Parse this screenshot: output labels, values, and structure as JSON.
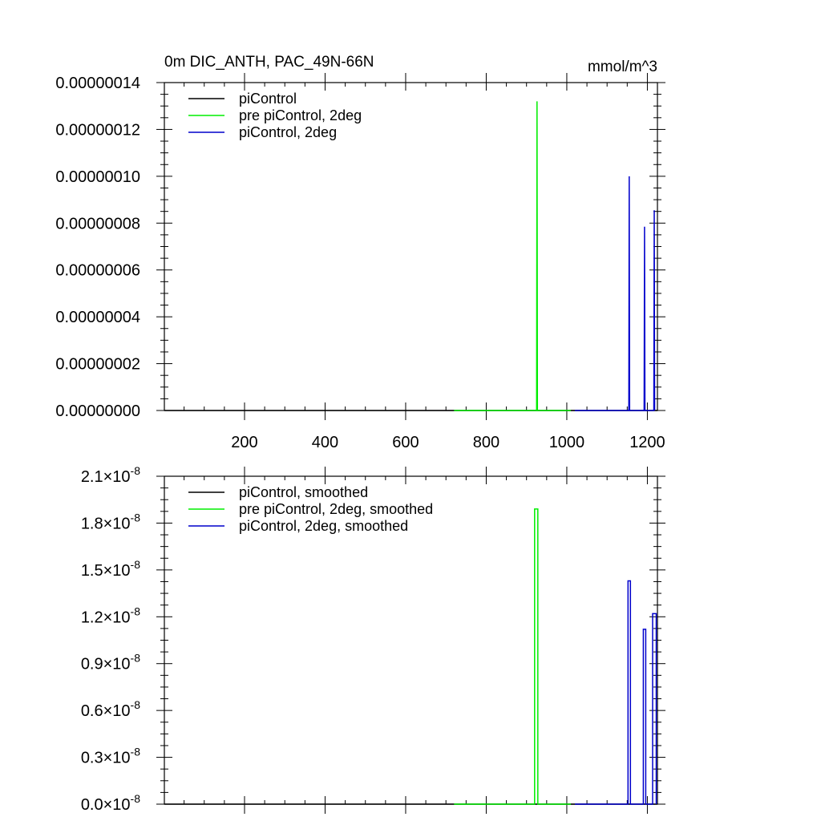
{
  "chart_data": [
    {
      "type": "line",
      "title": "0m DIC_ANTH, PAC_49N-66N",
      "units": "mmol/m^3",
      "xlim": [
        1,
        1225
      ],
      "ylim": [
        0,
        1.4e-07
      ],
      "x_ticks": [
        200,
        400,
        600,
        800,
        1000,
        1200
      ],
      "x_tick_labels": [
        "200",
        "400",
        "600",
        "800",
        "1000",
        "1200"
      ],
      "y_ticks": [
        0,
        2e-08,
        4e-08,
        6e-08,
        8e-08,
        1e-07,
        1.2e-07,
        1.4e-07
      ],
      "y_tick_labels": [
        "0.00000000",
        "0.00000002",
        "0.00000004",
        "0.00000006",
        "0.00000008",
        "0.00000010",
        "0.00000012",
        "0.00000014"
      ],
      "legend_position": "top-left",
      "series": [
        {
          "name": "piControl",
          "color": "#000000",
          "points": [
            [
              1,
              0
            ],
            [
              1225,
              0
            ]
          ]
        },
        {
          "name": "pre piControl, 2deg",
          "color": "#00ee00",
          "points": [
            [
              720,
              0
            ],
            [
              925,
              0
            ],
            [
              926,
              1.32e-07
            ],
            [
              927,
              0
            ],
            [
              1010,
              0
            ]
          ]
        },
        {
          "name": "piControl, 2deg",
          "color": "#0000cc",
          "points": [
            [
              1020,
              0
            ],
            [
              1154,
              0
            ],
            [
              1155,
              1e-07
            ],
            [
              1156,
              0
            ],
            [
              1192,
              0
            ],
            [
              1193,
              7.85e-08
            ],
            [
              1194,
              0
            ],
            [
              1216,
              0
            ],
            [
              1217,
              8.55e-08
            ],
            [
              1218,
              0
            ]
          ]
        }
      ]
    },
    {
      "type": "line",
      "title": "",
      "xlim": [
        1,
        1225
      ],
      "ylim": [
        0,
        2.1e-08
      ],
      "x_ticks": [
        200,
        400,
        600,
        800,
        1000,
        1200
      ],
      "y_ticks": [
        0,
        3e-09,
        6e-09,
        9e-09,
        1.2e-08,
        1.5e-08,
        1.8e-08,
        2.1e-08
      ],
      "y_tick_mantissas": [
        "0.0",
        "0.3",
        "0.6",
        "0.9",
        "1.2",
        "1.5",
        "1.8",
        "2.1"
      ],
      "y_tick_base": "×10",
      "y_tick_exponent": "-8",
      "legend_position": "top-left",
      "series": [
        {
          "name": "piControl, smoothed",
          "color": "#000000",
          "points": [
            [
              1,
              0
            ],
            [
              1225,
              0
            ]
          ]
        },
        {
          "name": "pre piControl, 2deg, smoothed",
          "color": "#00ee00",
          "points": [
            [
              720,
              0
            ],
            [
              920,
              0
            ],
            [
              920,
              1.89e-08
            ],
            [
              928,
              1.89e-08
            ],
            [
              928,
              0
            ],
            [
              1010,
              0
            ]
          ]
        },
        {
          "name": "piControl, 2deg, smoothed",
          "color": "#0000cc",
          "points": [
            [
              1020,
              0
            ],
            [
              1152,
              0
            ],
            [
              1152,
              1.43e-08
            ],
            [
              1158,
              1.43e-08
            ],
            [
              1158,
              0
            ],
            [
              1190,
              0
            ],
            [
              1190,
              1.12e-08
            ],
            [
              1196,
              1.12e-08
            ],
            [
              1196,
              0
            ],
            [
              1213,
              0
            ],
            [
              1213,
              1.22e-08
            ],
            [
              1222,
              1.22e-08
            ],
            [
              1222,
              0
            ]
          ]
        }
      ]
    }
  ]
}
